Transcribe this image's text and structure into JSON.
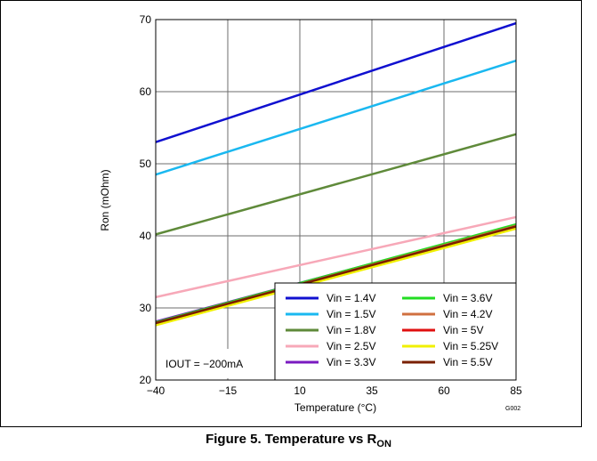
{
  "figure": {
    "caption_text": "Figure 5. Temperature vs R",
    "caption_sub": "ON",
    "code": "G002"
  },
  "chart_data": {
    "type": "line",
    "xlabel": "Temperature (°C)",
    "ylabel": "Ron (mOhm)",
    "xlim": [
      -40,
      85
    ],
    "ylim": [
      20,
      70
    ],
    "xticks": [
      -40,
      -15,
      10,
      35,
      60,
      85
    ],
    "xtick_labels": [
      "−40",
      "−15",
      "10",
      "35",
      "60",
      "85"
    ],
    "yticks": [
      20,
      30,
      40,
      50,
      60,
      70
    ],
    "grid": true,
    "annotation": "IOUT = −200mA",
    "legend_position": "bottom-right",
    "series": [
      {
        "name": "Vin = 1.4V",
        "color": "#1010d0",
        "x": [
          -40,
          85
        ],
        "y": [
          53.0,
          69.5
        ]
      },
      {
        "name": "Vin = 1.5V",
        "color": "#1ab8f0",
        "x": [
          -40,
          85
        ],
        "y": [
          48.5,
          64.3
        ]
      },
      {
        "name": "Vin = 1.8V",
        "color": "#5f8a3a",
        "x": [
          -40,
          85
        ],
        "y": [
          40.2,
          54.1
        ]
      },
      {
        "name": "Vin = 2.5V",
        "color": "#f7a8b8",
        "x": [
          -40,
          85
        ],
        "y": [
          31.5,
          42.6
        ]
      },
      {
        "name": "Vin = 3.3V",
        "color": "#7a1ac0",
        "x": [
          -40,
          85
        ],
        "y": [
          28.1,
          41.5
        ]
      },
      {
        "name": "Vin = 3.6V",
        "color": "#22dd22",
        "x": [
          -40,
          85
        ],
        "y": [
          28.0,
          41.6
        ]
      },
      {
        "name": "Vin = 4.2V",
        "color": "#d07040",
        "x": [
          -40,
          85
        ],
        "y": [
          27.9,
          41.4
        ]
      },
      {
        "name": "Vin = 5V",
        "color": "#e01010",
        "x": [
          -40,
          85
        ],
        "y": [
          27.8,
          41.2
        ]
      },
      {
        "name": "Vin = 5.25V",
        "color": "#f0f000",
        "x": [
          -40,
          85
        ],
        "y": [
          27.6,
          41.0
        ]
      },
      {
        "name": "Vin = 5.5V",
        "color": "#7a2000",
        "x": [
          -40,
          85
        ],
        "y": [
          27.9,
          41.3
        ]
      }
    ]
  }
}
